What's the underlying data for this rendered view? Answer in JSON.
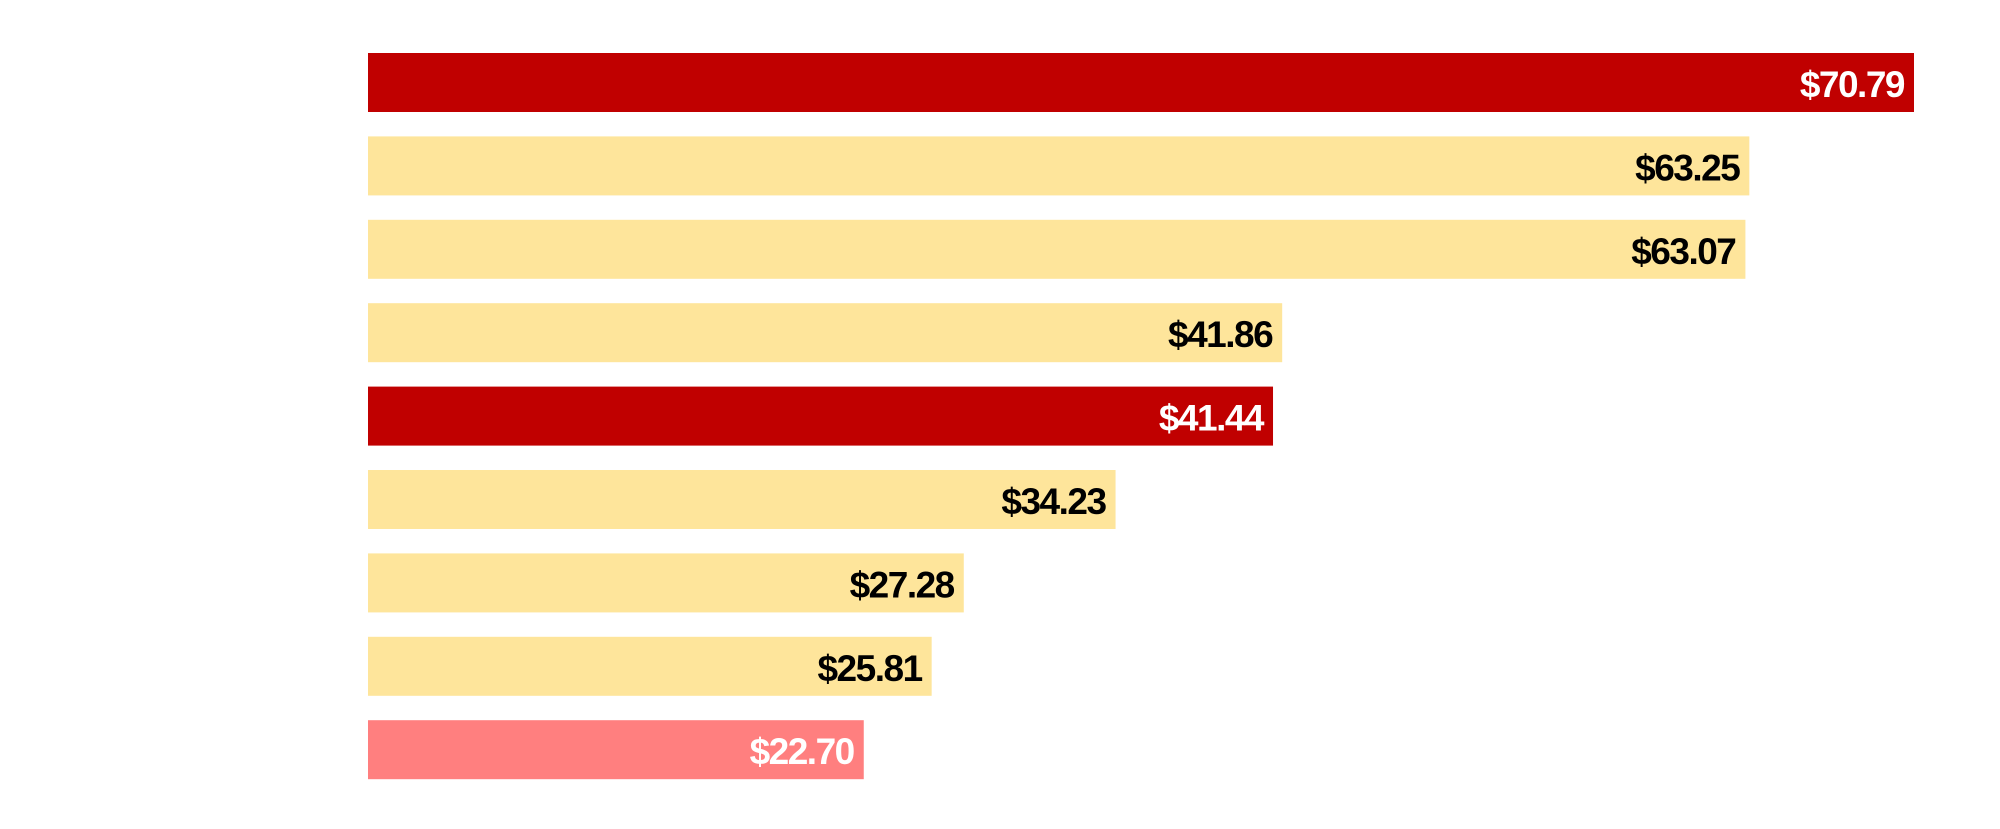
{
  "chart_data": {
    "type": "barh",
    "categories": [
      null,
      null,
      null,
      null,
      null,
      null,
      null,
      null,
      null
    ],
    "values": [
      70.79,
      63.25,
      63.07,
      41.86,
      41.44,
      34.23,
      27.28,
      25.81,
      22.7
    ],
    "value_labels": [
      "$70.79",
      "$63.25",
      "$63.07",
      "$41.86",
      "$41.44",
      "$34.23",
      "$27.28",
      "$25.81",
      "$22.70"
    ],
    "colors": [
      "#c00000",
      "#fee59b",
      "#fee59b",
      "#fee59b",
      "#c00000",
      "#fee59b",
      "#fee59b",
      "#fee59b",
      "#ff7f7f"
    ],
    "label_colors": [
      "#ffffff",
      "#000000",
      "#000000",
      "#000000",
      "#ffffff",
      "#000000",
      "#000000",
      "#000000",
      "#ffffff"
    ]
  }
}
